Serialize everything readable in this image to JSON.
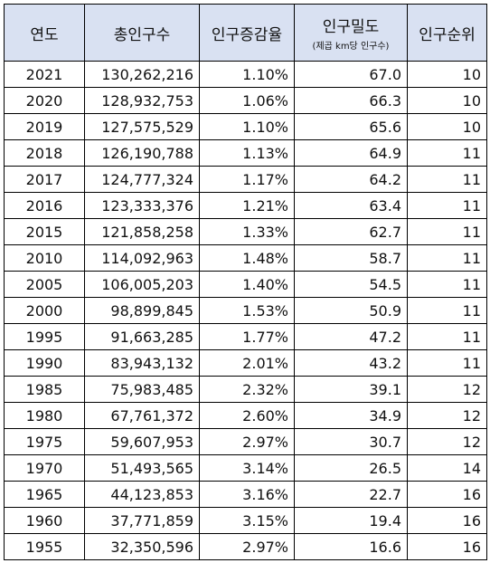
{
  "headers": {
    "year": "연도",
    "total": "총인구수",
    "rate": "인구증감율",
    "density": "인구밀도",
    "density_sub": "(제곱 km당 인구수)",
    "rank": "인구순위"
  },
  "rows": [
    {
      "year": "2021",
      "total": "130,262,216",
      "rate": "1.10%",
      "density": "67.0",
      "rank": "10"
    },
    {
      "year": "2020",
      "total": "128,932,753",
      "rate": "1.06%",
      "density": "66.3",
      "rank": "10"
    },
    {
      "year": "2019",
      "total": "127,575,529",
      "rate": "1.10%",
      "density": "65.6",
      "rank": "10"
    },
    {
      "year": "2018",
      "total": "126,190,788",
      "rate": "1.13%",
      "density": "64.9",
      "rank": "11"
    },
    {
      "year": "2017",
      "total": "124,777,324",
      "rate": "1.17%",
      "density": "64.2",
      "rank": "11"
    },
    {
      "year": "2016",
      "total": "123,333,376",
      "rate": "1.21%",
      "density": "63.4",
      "rank": "11"
    },
    {
      "year": "2015",
      "total": "121,858,258",
      "rate": "1.33%",
      "density": "62.7",
      "rank": "11"
    },
    {
      "year": "2010",
      "total": "114,092,963",
      "rate": "1.48%",
      "density": "58.7",
      "rank": "11"
    },
    {
      "year": "2005",
      "total": "106,005,203",
      "rate": "1.40%",
      "density": "54.5",
      "rank": "11"
    },
    {
      "year": "2000",
      "total": "98,899,845",
      "rate": "1.53%",
      "density": "50.9",
      "rank": "11"
    },
    {
      "year": "1995",
      "total": "91,663,285",
      "rate": "1.77%",
      "density": "47.2",
      "rank": "11"
    },
    {
      "year": "1990",
      "total": "83,943,132",
      "rate": "2.01%",
      "density": "43.2",
      "rank": "11"
    },
    {
      "year": "1985",
      "total": "75,983,485",
      "rate": "2.32%",
      "density": "39.1",
      "rank": "12"
    },
    {
      "year": "1980",
      "total": "67,761,372",
      "rate": "2.60%",
      "density": "34.9",
      "rank": "12"
    },
    {
      "year": "1975",
      "total": "59,607,953",
      "rate": "2.97%",
      "density": "30.7",
      "rank": "12"
    },
    {
      "year": "1970",
      "total": "51,493,565",
      "rate": "3.14%",
      "density": "26.5",
      "rank": "14"
    },
    {
      "year": "1965",
      "total": "44,123,853",
      "rate": "3.16%",
      "density": "22.7",
      "rank": "16"
    },
    {
      "year": "1960",
      "total": "37,771,859",
      "rate": "3.15%",
      "density": "19.4",
      "rank": "16"
    },
    {
      "year": "1955",
      "total": "32,350,596",
      "rate": "2.97%",
      "density": "16.6",
      "rank": "16"
    }
  ]
}
